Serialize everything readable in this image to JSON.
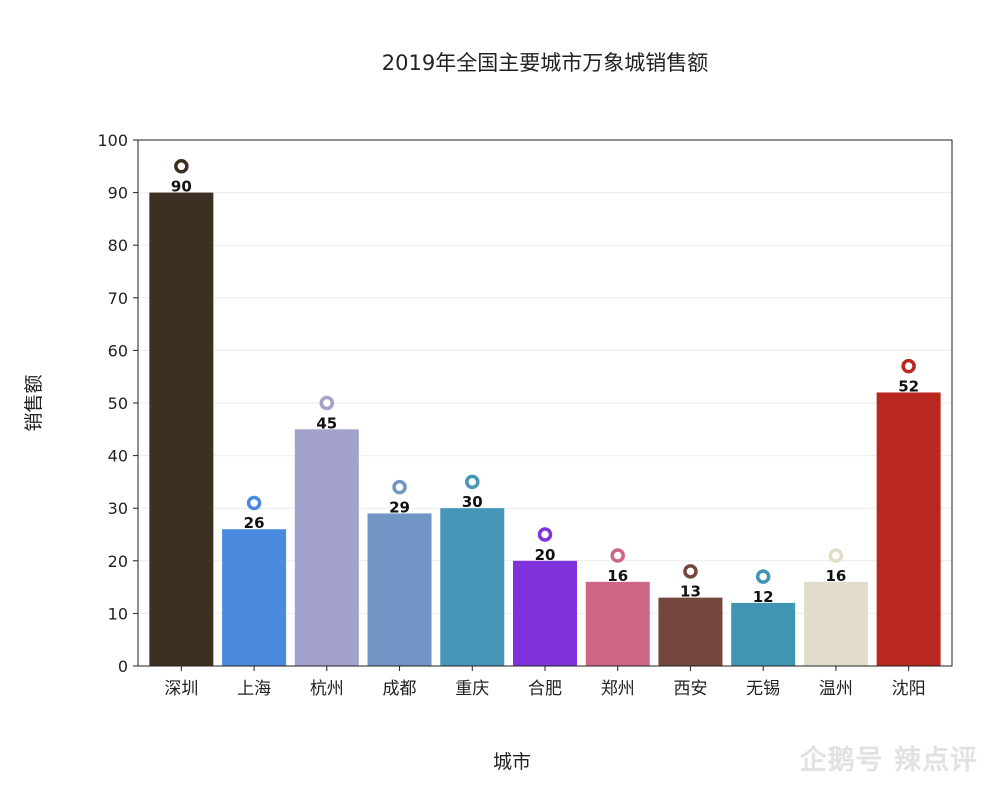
{
  "chart_data": {
    "type": "bar",
    "title": "2019年全国主要城市万象城销售额",
    "xlabel": "城市",
    "ylabel": "销售额",
    "ylim": [
      0,
      100
    ],
    "yticks": [
      0,
      10,
      20,
      30,
      40,
      50,
      60,
      70,
      80,
      90,
      100
    ],
    "grid": true,
    "categories": [
      "深圳",
      "上海",
      "杭州",
      "成都",
      "重庆",
      "合肥",
      "郑州",
      "西安",
      "无锡",
      "温州",
      "沈阳"
    ],
    "values": [
      90,
      26,
      45,
      29,
      30,
      20,
      16,
      13,
      12,
      16,
      52
    ],
    "colors": [
      "#3e2f23",
      "#4a8be0",
      "#a3a2cc",
      "#7196c6",
      "#4596b8",
      "#8033dc",
      "#cf6584",
      "#74463c",
      "#3f95b2",
      "#e2dccb",
      "#b8281e"
    ],
    "marker": "ring"
  },
  "watermark": "企鹅号 辣点评"
}
